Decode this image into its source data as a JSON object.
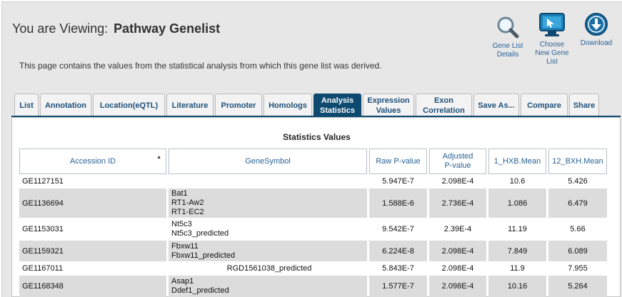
{
  "header": {
    "viewing_label": "You are Viewing:",
    "list_name": "Pathway Genelist",
    "description": "This page contains the values from the statistical analysis from which this gene list was derived."
  },
  "actions": {
    "details": {
      "line1": "Gene List",
      "line2": "Details",
      "icon": "magnifier-icon"
    },
    "choose": {
      "line1": "Choose",
      "line2": "New Gene",
      "line3": "List",
      "icon": "monitor-icon"
    },
    "download": {
      "line1": "Download",
      "icon": "download-icon"
    }
  },
  "tabs": [
    {
      "l1": "List",
      "l2": ""
    },
    {
      "l1": "Annotation",
      "l2": ""
    },
    {
      "l1": "Location(eQTL)",
      "l2": ""
    },
    {
      "l1": "Literature",
      "l2": ""
    },
    {
      "l1": "Promoter",
      "l2": ""
    },
    {
      "l1": "Homologs",
      "l2": ""
    },
    {
      "l1": "Analysis",
      "l2": "Statistics"
    },
    {
      "l1": "Expression",
      "l2": "Values"
    },
    {
      "l1": "Exon",
      "l2": "Correlation"
    },
    {
      "l1": "Save As...",
      "l2": ""
    },
    {
      "l1": "Compare",
      "l2": ""
    },
    {
      "l1": "Share",
      "l2": ""
    }
  ],
  "active_tab": "Analysis Statistics",
  "colors": {
    "accent": "#0e4a70",
    "link": "#2a6496",
    "row_alt": "#dcdcdc"
  },
  "table": {
    "title": "Statistics Values",
    "columns": [
      {
        "l1": "Accession ID",
        "l2": ""
      },
      {
        "l1": "GeneSymbol",
        "l2": ""
      },
      {
        "l1": "Raw P-value",
        "l2": ""
      },
      {
        "l1": "Adjusted",
        "l2": "P-value"
      },
      {
        "l1": "1_HXB.Mean",
        "l2": ""
      },
      {
        "l1": "12_BXH.Mean",
        "l2": ""
      }
    ],
    "rows": [
      {
        "id": "GE1127151",
        "s1": "",
        "s2": "",
        "s3": "",
        "raw": "5.947E-7",
        "adj": "2.098E-4",
        "hxb": "10.6",
        "bxh": "5.426"
      },
      {
        "id": "GE1136694",
        "s1": "Bat1",
        "s2": "RT1-Aw2",
        "s3": "RT1-EC2",
        "raw": "1.588E-6",
        "adj": "2.736E-4",
        "hxb": "1.086",
        "bxh": "6.479"
      },
      {
        "id": "GE1153031",
        "s1": "Nt5c3",
        "s2": "Nt5c3_predicted",
        "s3": "",
        "raw": "9.542E-7",
        "adj": "2.39E-4",
        "hxb": "11.19",
        "bxh": "5.66"
      },
      {
        "id": "GE1159321",
        "s1": "Fbxw11",
        "s2": "Fbxw11_predicted",
        "s3": "",
        "raw": "6.224E-8",
        "adj": "2.098E-4",
        "hxb": "7.849",
        "bxh": "6.089"
      },
      {
        "id": "GE1167011",
        "s1": "RGD1561038_predicted",
        "s2": "",
        "s3": "",
        "raw": "5.843E-7",
        "adj": "2.098E-4",
        "hxb": "11.9",
        "bxh": "7.955"
      },
      {
        "id": "GE1168348",
        "s1": "Asap1",
        "s2": "Ddef1_predicted",
        "s3": "",
        "raw": "1.577E-7",
        "adj": "2.098E-4",
        "hxb": "10.16",
        "bxh": "5.264"
      }
    ]
  }
}
